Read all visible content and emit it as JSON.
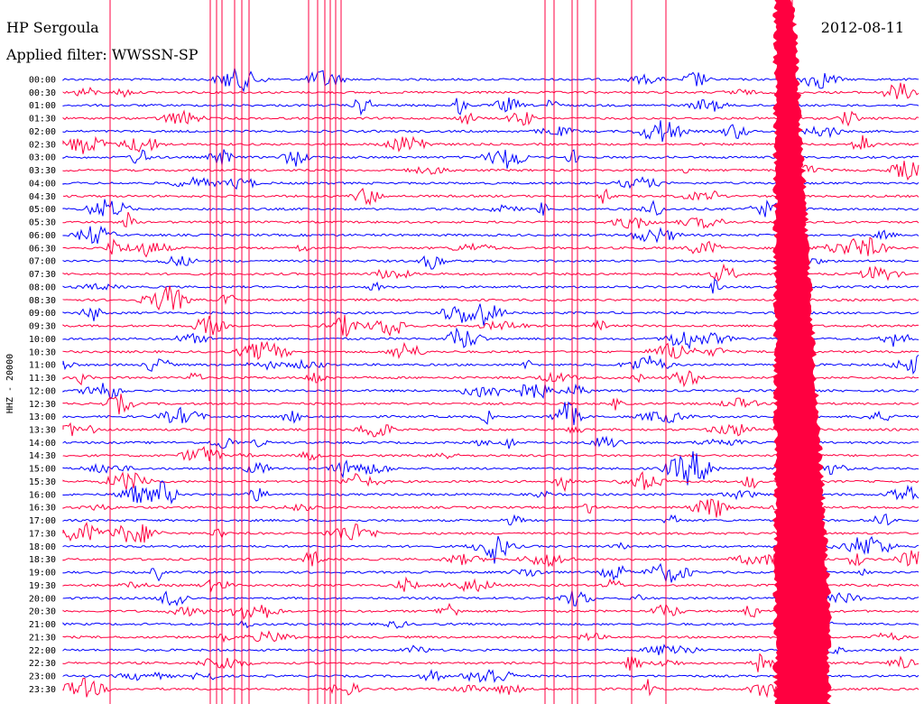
{
  "header": {
    "station": "HP Sergoula",
    "date": "2012-08-11",
    "filter": "Applied filter: WWSSN-SP"
  },
  "chart_data": {
    "type": "line",
    "title": "HP Sergoula",
    "ylabel": "HHZ - 20000",
    "colors": [
      "#0000ff",
      "#ff0040"
    ],
    "grid": false,
    "times": [
      "00:00",
      "00:30",
      "01:00",
      "01:30",
      "02:00",
      "02:30",
      "03:00",
      "03:30",
      "04:00",
      "04:30",
      "05:00",
      "05:30",
      "06:00",
      "06:30",
      "07:00",
      "07:30",
      "08:00",
      "08:30",
      "09:00",
      "09:30",
      "10:00",
      "10:30",
      "11:00",
      "11:30",
      "12:00",
      "12:30",
      "13:00",
      "13:30",
      "14:00",
      "14:30",
      "15:00",
      "15:30",
      "16:00",
      "16:30",
      "17:00",
      "17:30",
      "18:00",
      "18:30",
      "19:00",
      "19:30",
      "20:00",
      "20:30",
      "21:00",
      "21:30",
      "22:00",
      "22:30",
      "23:00",
      "23:30"
    ]
  }
}
